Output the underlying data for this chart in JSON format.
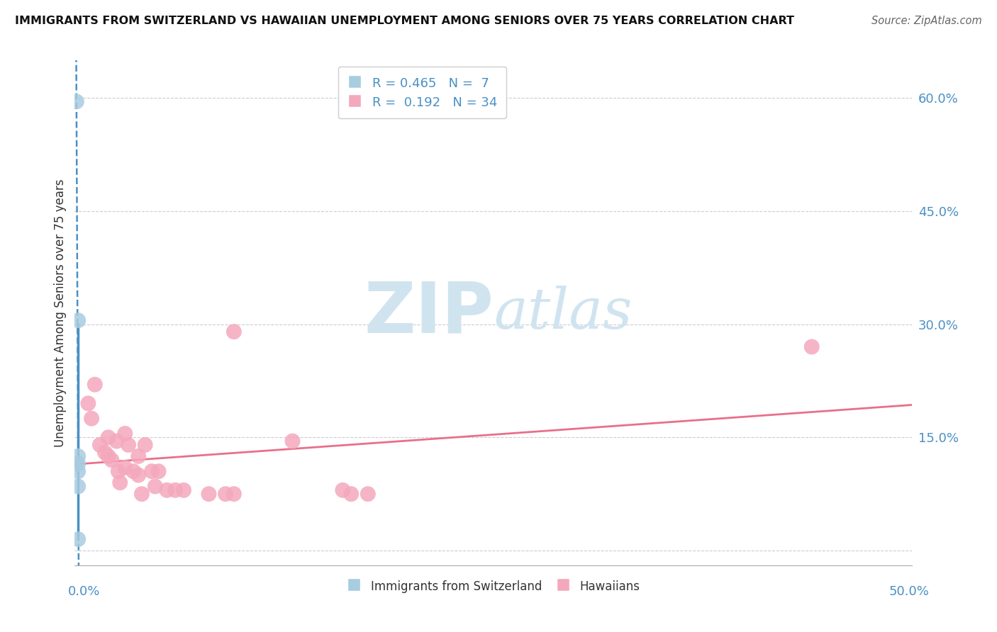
{
  "title": "IMMIGRANTS FROM SWITZERLAND VS HAWAIIAN UNEMPLOYMENT AMONG SENIORS OVER 75 YEARS CORRELATION CHART",
  "source": "Source: ZipAtlas.com",
  "ylabel": "Unemployment Among Seniors over 75 years",
  "xlim": [
    0.0,
    0.5
  ],
  "ylim": [
    -0.02,
    0.65
  ],
  "yticks": [
    0.0,
    0.15,
    0.3,
    0.45,
    0.6
  ],
  "ytick_labels": [
    "",
    "15.0%",
    "30.0%",
    "45.0%",
    "60.0%"
  ],
  "legend_line1": "R = 0.465   N =  7",
  "legend_line2": "R =  0.192   N = 34",
  "blue_color": "#a8cce0",
  "pink_color": "#f4a8bc",
  "blue_line_color": "#4a90c4",
  "pink_line_color": "#e8708a",
  "blue_scatter": [
    [
      0.001,
      0.595
    ],
    [
      0.002,
      0.305
    ],
    [
      0.002,
      0.125
    ],
    [
      0.002,
      0.115
    ],
    [
      0.002,
      0.105
    ],
    [
      0.002,
      0.085
    ],
    [
      0.002,
      0.015
    ]
  ],
  "pink_scatter": [
    [
      0.008,
      0.195
    ],
    [
      0.01,
      0.175
    ],
    [
      0.012,
      0.22
    ],
    [
      0.015,
      0.14
    ],
    [
      0.018,
      0.13
    ],
    [
      0.02,
      0.15
    ],
    [
      0.02,
      0.125
    ],
    [
      0.022,
      0.12
    ],
    [
      0.025,
      0.145
    ],
    [
      0.026,
      0.105
    ],
    [
      0.027,
      0.09
    ],
    [
      0.03,
      0.11
    ],
    [
      0.03,
      0.155
    ],
    [
      0.032,
      0.14
    ],
    [
      0.035,
      0.105
    ],
    [
      0.038,
      0.1
    ],
    [
      0.038,
      0.125
    ],
    [
      0.04,
      0.075
    ],
    [
      0.042,
      0.14
    ],
    [
      0.046,
      0.105
    ],
    [
      0.048,
      0.085
    ],
    [
      0.05,
      0.105
    ],
    [
      0.055,
      0.08
    ],
    [
      0.06,
      0.08
    ],
    [
      0.065,
      0.08
    ],
    [
      0.08,
      0.075
    ],
    [
      0.09,
      0.075
    ],
    [
      0.095,
      0.075
    ],
    [
      0.095,
      0.29
    ],
    [
      0.13,
      0.145
    ],
    [
      0.16,
      0.08
    ],
    [
      0.165,
      0.075
    ],
    [
      0.175,
      0.075
    ],
    [
      0.44,
      0.27
    ]
  ],
  "background_color": "#ffffff",
  "grid_color": "#cccccc",
  "watermark_zip": "ZIP",
  "watermark_atlas": "atlas",
  "watermark_color": "#d0e4f0"
}
